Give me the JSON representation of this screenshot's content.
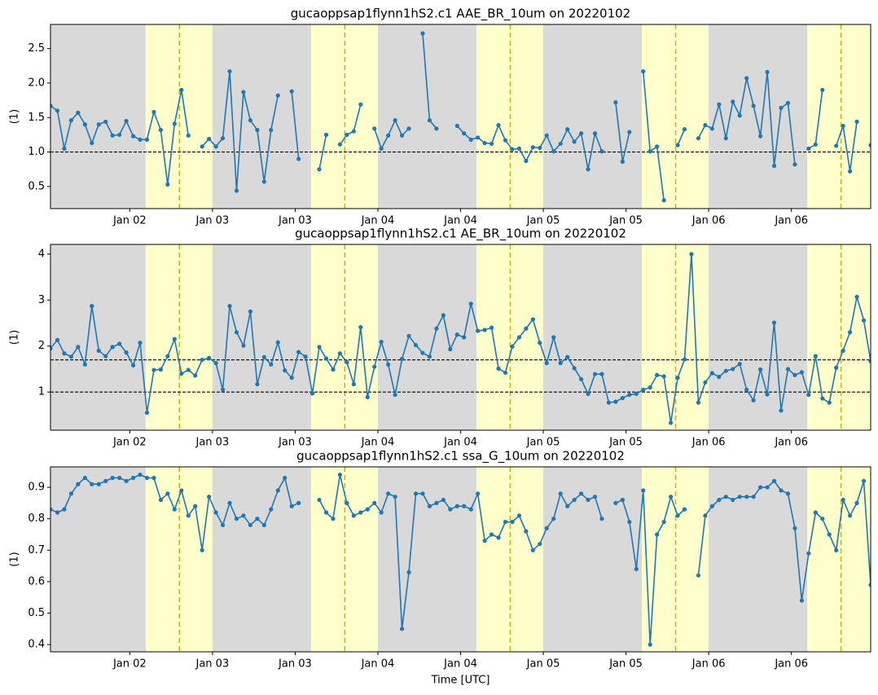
{
  "chart_data": [
    {
      "type": "line",
      "title": "gucaoppsap1flynn1hS2.c1 AAE_BR_10um on 20220102",
      "ylabel": "(1)",
      "xlim": [
        0.5,
        119.5
      ],
      "ylim": [
        0.18,
        2.85
      ],
      "xticks": [
        {
          "value": 12,
          "label": "Jan 02"
        },
        {
          "value": 24,
          "label": "Jan 03"
        },
        {
          "value": 36,
          "label": "Jan 03"
        },
        {
          "value": 48,
          "label": "Jan 04"
        },
        {
          "value": 60,
          "label": "Jan 04"
        },
        {
          "value": 72,
          "label": "Jan 05"
        },
        {
          "value": 84,
          "label": "Jan 05"
        },
        {
          "value": 96,
          "label": "Jan 06"
        },
        {
          "value": 108,
          "label": "Jan 06"
        }
      ],
      "yticks": [
        0.5,
        {
          "value": 1.0,
          "label": "1.0"
        },
        1.5,
        {
          "value": 2.0,
          "label": "2.0"
        },
        2.5
      ],
      "hlines": [
        1.0
      ],
      "day_spans": [
        [
          14.3,
          24
        ],
        [
          38.3,
          48
        ],
        [
          62.3,
          72
        ],
        [
          86.3,
          96
        ],
        [
          110.3,
          119.5
        ]
      ],
      "solar_noon": [
        19.2,
        43.2,
        67.2,
        91.2,
        115.2
      ],
      "night_color": "#d9d9d9",
      "day_color": "#ffffcc",
      "noon_color": "#c8b400",
      "x": [
        0.5,
        1.5,
        2.5,
        3.5,
        4.5,
        5.5,
        6.5,
        7.5,
        8.5,
        9.5,
        10.5,
        11.5,
        12.5,
        13.5,
        14.5,
        15.5,
        16.5,
        17.5,
        18.5,
        19.5,
        20.5,
        21.5,
        22.5,
        23.5,
        24.5,
        25.5,
        26.5,
        27.5,
        28.5,
        29.5,
        30.5,
        31.5,
        32.5,
        33.5,
        34.5,
        35.5,
        36.5,
        37.5,
        38.5,
        39.5,
        40.5,
        41.5,
        42.5,
        43.5,
        44.5,
        45.5,
        46.5,
        47.5,
        48.5,
        49.5,
        50.5,
        51.5,
        52.5,
        53.5,
        54.5,
        55.5,
        56.5,
        57.5,
        58.5,
        59.5,
        60.5,
        61.5,
        62.5,
        63.5,
        64.5,
        65.5,
        66.5,
        67.5,
        68.5,
        69.5,
        70.5,
        71.5,
        72.5,
        73.5,
        74.5,
        75.5,
        76.5,
        77.5,
        78.5,
        79.5,
        80.5,
        81.5,
        82.5,
        83.5,
        84.5,
        85.5,
        86.5,
        87.5,
        88.5,
        89.5,
        90.5,
        91.5,
        92.5,
        93.5,
        94.5,
        95.5,
        96.5,
        97.5,
        98.5,
        99.5,
        100.5,
        101.5,
        102.5,
        103.5,
        104.5,
        105.5,
        106.5,
        107.5,
        108.5,
        109.5,
        110.5,
        111.5,
        112.5,
        113.5,
        114.5,
        115.5,
        116.5,
        117.5,
        118.5,
        119.5
      ],
      "series": [
        {
          "color": "#1f77b4",
          "values": [
            1.67,
            1.6,
            1.05,
            1.46,
            1.57,
            1.4,
            1.13,
            1.4,
            1.44,
            1.24,
            1.25,
            1.45,
            1.23,
            1.18,
            1.18,
            1.58,
            1.32,
            0.53,
            1.41,
            1.9,
            1.24,
            null,
            1.08,
            1.19,
            1.08,
            1.2,
            2.17,
            0.44,
            1.87,
            1.46,
            1.32,
            0.57,
            1.32,
            1.82,
            null,
            1.88,
            0.9,
            null,
            null,
            0.75,
            1.25,
            null,
            1.11,
            1.25,
            1.3,
            1.69,
            null,
            1.34,
            1.05,
            1.24,
            1.46,
            1.24,
            1.34,
            null,
            2.72,
            1.46,
            1.34,
            null,
            null,
            1.38,
            1.27,
            1.18,
            1.21,
            1.13,
            1.12,
            1.39,
            1.17,
            1.04,
            1.05,
            0.87,
            1.07,
            1.06,
            1.24,
            1.01,
            1.12,
            1.33,
            1.15,
            1.27,
            0.75,
            1.27,
            1.01,
            null,
            1.72,
            0.86,
            1.29,
            null,
            2.17,
            1.01,
            1.08,
            0.3,
            null,
            1.1,
            1.33,
            null,
            1.2,
            1.39,
            1.34,
            1.69,
            1.2,
            1.73,
            1.53,
            2.07,
            1.67,
            1.23,
            2.16,
            0.8,
            1.64,
            1.71,
            0.82,
            null,
            1.05,
            1.11,
            1.9,
            null,
            1.09,
            1.38,
            0.72,
            1.44,
            null,
            1.1
          ]
        }
      ]
    },
    {
      "type": "line",
      "title": "gucaoppsap1flynn1hS2.c1 AE_BR_10um on 20220102",
      "ylabel": "(1)",
      "xlim": [
        0.5,
        119.5
      ],
      "ylim": [
        0.17,
        4.21
      ],
      "xticks": [
        {
          "value": 12,
          "label": "Jan 02"
        },
        {
          "value": 24,
          "label": "Jan 03"
        },
        {
          "value": 36,
          "label": "Jan 03"
        },
        {
          "value": 48,
          "label": "Jan 04"
        },
        {
          "value": 60,
          "label": "Jan 04"
        },
        {
          "value": 72,
          "label": "Jan 05"
        },
        {
          "value": 84,
          "label": "Jan 05"
        },
        {
          "value": 96,
          "label": "Jan 06"
        },
        {
          "value": 108,
          "label": "Jan 06"
        }
      ],
      "yticks": [
        1,
        2,
        3,
        4
      ],
      "hlines": [
        1.0,
        1.7
      ],
      "day_spans": [
        [
          14.3,
          24
        ],
        [
          38.3,
          48
        ],
        [
          62.3,
          72
        ],
        [
          86.3,
          96
        ],
        [
          110.3,
          119.5
        ]
      ],
      "solar_noon": [
        19.2,
        43.2,
        67.2,
        91.2,
        115.2
      ],
      "night_color": "#d9d9d9",
      "day_color": "#ffffcc",
      "noon_color": "#c8b400",
      "x": [
        0.5,
        1.5,
        2.5,
        3.5,
        4.5,
        5.5,
        6.5,
        7.5,
        8.5,
        9.5,
        10.5,
        11.5,
        12.5,
        13.5,
        14.5,
        15.5,
        16.5,
        17.5,
        18.5,
        19.5,
        20.5,
        21.5,
        22.5,
        23.5,
        24.5,
        25.5,
        26.5,
        27.5,
        28.5,
        29.5,
        30.5,
        31.5,
        32.5,
        33.5,
        34.5,
        35.5,
        36.5,
        37.5,
        38.5,
        39.5,
        40.5,
        41.5,
        42.5,
        43.5,
        44.5,
        45.5,
        46.5,
        47.5,
        48.5,
        49.5,
        50.5,
        51.5,
        52.5,
        53.5,
        54.5,
        55.5,
        56.5,
        57.5,
        58.5,
        59.5,
        60.5,
        61.5,
        62.5,
        63.5,
        64.5,
        65.5,
        66.5,
        67.5,
        68.5,
        69.5,
        70.5,
        71.5,
        72.5,
        73.5,
        74.5,
        75.5,
        76.5,
        77.5,
        78.5,
        79.5,
        80.5,
        81.5,
        82.5,
        83.5,
        84.5,
        85.5,
        86.5,
        87.5,
        88.5,
        89.5,
        90.5,
        91.5,
        92.5,
        93.5,
        94.5,
        95.5,
        96.5,
        97.5,
        98.5,
        99.5,
        100.5,
        101.5,
        102.5,
        103.5,
        104.5,
        105.5,
        106.5,
        107.5,
        108.5,
        109.5,
        110.5,
        111.5,
        112.5,
        113.5,
        114.5,
        115.5,
        116.5,
        117.5,
        118.5,
        119.5
      ],
      "series": [
        {
          "color": "#1f77b4",
          "values": [
            1.95,
            2.13,
            1.84,
            1.77,
            1.98,
            1.6,
            2.87,
            1.9,
            1.78,
            1.98,
            2.05,
            1.86,
            1.58,
            2.07,
            0.55,
            1.48,
            1.49,
            1.78,
            2.15,
            1.4,
            1.48,
            1.36,
            1.7,
            1.74,
            1.63,
            1.05,
            2.87,
            2.3,
            2.01,
            2.75,
            1.17,
            1.76,
            1.6,
            2.08,
            1.47,
            1.31,
            1.87,
            1.77,
            0.97,
            1.98,
            1.73,
            1.49,
            1.84,
            1.65,
            1.17,
            2.41,
            0.89,
            1.55,
            2.09,
            1.6,
            0.94,
            1.72,
            2.22,
            2.02,
            1.85,
            1.77,
            2.38,
            2.67,
            1.93,
            2.25,
            2.19,
            2.92,
            2.33,
            2.35,
            2.4,
            1.51,
            1.42,
            1.99,
            2.19,
            2.38,
            2.58,
            2.07,
            1.63,
            2.19,
            1.63,
            1.76,
            1.52,
            1.28,
            0.96,
            1.39,
            1.39,
            0.77,
            0.79,
            0.87,
            0.94,
            0.96,
            1.05,
            1.1,
            1.37,
            1.34,
            0.33,
            1.31,
            1.71,
            4.0,
            0.77,
            1.21,
            1.41,
            1.33,
            1.46,
            1.5,
            1.61,
            1.05,
            0.82,
            1.49,
            0.95,
            2.51,
            0.6,
            1.5,
            1.37,
            1.43,
            0.94,
            1.78,
            0.86,
            0.77,
            1.53,
            1.9,
            2.3,
            3.07,
            2.56,
            1.67
          ]
        }
      ]
    },
    {
      "type": "line",
      "title": "gucaoppsap1flynn1hS2.c1 ssa_G_10um on 20220102",
      "ylabel": "(1)",
      "xlabel": "Time [UTC]",
      "xlim": [
        0.5,
        119.5
      ],
      "ylim": [
        0.377,
        0.965
      ],
      "xticks": [
        {
          "value": 12,
          "label": "Jan 02"
        },
        {
          "value": 24,
          "label": "Jan 03"
        },
        {
          "value": 36,
          "label": "Jan 03"
        },
        {
          "value": 48,
          "label": "Jan 04"
        },
        {
          "value": 60,
          "label": "Jan 04"
        },
        {
          "value": 72,
          "label": "Jan 05"
        },
        {
          "value": 84,
          "label": "Jan 05"
        },
        {
          "value": 96,
          "label": "Jan 06"
        },
        {
          "value": 108,
          "label": "Jan 06"
        }
      ],
      "yticks": [
        0.4,
        0.5,
        0.6,
        0.7,
        0.8,
        0.9
      ],
      "hlines": [],
      "day_spans": [
        [
          14.3,
          24
        ],
        [
          38.3,
          48
        ],
        [
          62.3,
          72
        ],
        [
          86.3,
          96
        ],
        [
          110.3,
          119.5
        ]
      ],
      "solar_noon": [
        19.2,
        43.2,
        67.2,
        91.2,
        115.2
      ],
      "night_color": "#d9d9d9",
      "day_color": "#ffffcc",
      "noon_color": "#c8b400",
      "x": [
        0.5,
        1.5,
        2.5,
        3.5,
        4.5,
        5.5,
        6.5,
        7.5,
        8.5,
        9.5,
        10.5,
        11.5,
        12.5,
        13.5,
        14.5,
        15.5,
        16.5,
        17.5,
        18.5,
        19.5,
        20.5,
        21.5,
        22.5,
        23.5,
        24.5,
        25.5,
        26.5,
        27.5,
        28.5,
        29.5,
        30.5,
        31.5,
        32.5,
        33.5,
        34.5,
        35.5,
        36.5,
        37.5,
        38.5,
        39.5,
        40.5,
        41.5,
        42.5,
        43.5,
        44.5,
        45.5,
        46.5,
        47.5,
        48.5,
        49.5,
        50.5,
        51.5,
        52.5,
        53.5,
        54.5,
        55.5,
        56.5,
        57.5,
        58.5,
        59.5,
        60.5,
        61.5,
        62.5,
        63.5,
        64.5,
        65.5,
        66.5,
        67.5,
        68.5,
        69.5,
        70.5,
        71.5,
        72.5,
        73.5,
        74.5,
        75.5,
        76.5,
        77.5,
        78.5,
        79.5,
        80.5,
        81.5,
        82.5,
        83.5,
        84.5,
        85.5,
        86.5,
        87.5,
        88.5,
        89.5,
        90.5,
        91.5,
        92.5,
        93.5,
        94.5,
        95.5,
        96.5,
        97.5,
        98.5,
        99.5,
        100.5,
        101.5,
        102.5,
        103.5,
        104.5,
        105.5,
        106.5,
        107.5,
        108.5,
        109.5,
        110.5,
        111.5,
        112.5,
        113.5,
        114.5,
        115.5,
        116.5,
        117.5,
        118.5,
        119.5
      ],
      "series": [
        {
          "color": "#1f77b4",
          "values": [
            0.83,
            0.82,
            0.83,
            0.88,
            0.91,
            0.93,
            0.91,
            0.91,
            0.92,
            0.93,
            0.93,
            0.92,
            0.93,
            0.94,
            0.93,
            0.93,
            0.86,
            0.88,
            0.83,
            0.89,
            0.81,
            0.84,
            0.7,
            0.87,
            0.82,
            0.78,
            0.85,
            0.8,
            0.81,
            0.78,
            0.8,
            0.78,
            0.83,
            0.89,
            0.93,
            0.84,
            0.85,
            null,
            null,
            0.86,
            0.82,
            0.8,
            0.94,
            0.85,
            0.81,
            0.82,
            0.83,
            0.85,
            0.82,
            0.88,
            0.87,
            0.45,
            0.63,
            0.88,
            0.88,
            0.84,
            0.85,
            0.86,
            0.83,
            0.84,
            0.84,
            0.83,
            0.88,
            0.73,
            0.75,
            0.74,
            0.79,
            0.79,
            0.81,
            0.76,
            0.7,
            0.72,
            0.77,
            0.8,
            0.88,
            0.84,
            0.86,
            0.88,
            0.86,
            0.87,
            0.8,
            null,
            0.85,
            0.86,
            0.79,
            0.64,
            0.89,
            0.4,
            0.75,
            0.79,
            0.87,
            0.81,
            0.83,
            null,
            0.62,
            0.81,
            0.84,
            0.86,
            0.87,
            0.86,
            0.87,
            0.87,
            0.87,
            0.9,
            0.9,
            0.92,
            0.89,
            0.88,
            0.77,
            0.54,
            0.69,
            0.82,
            0.8,
            0.75,
            0.7,
            0.86,
            0.81,
            0.85,
            0.92,
            0.59
          ]
        }
      ]
    }
  ]
}
